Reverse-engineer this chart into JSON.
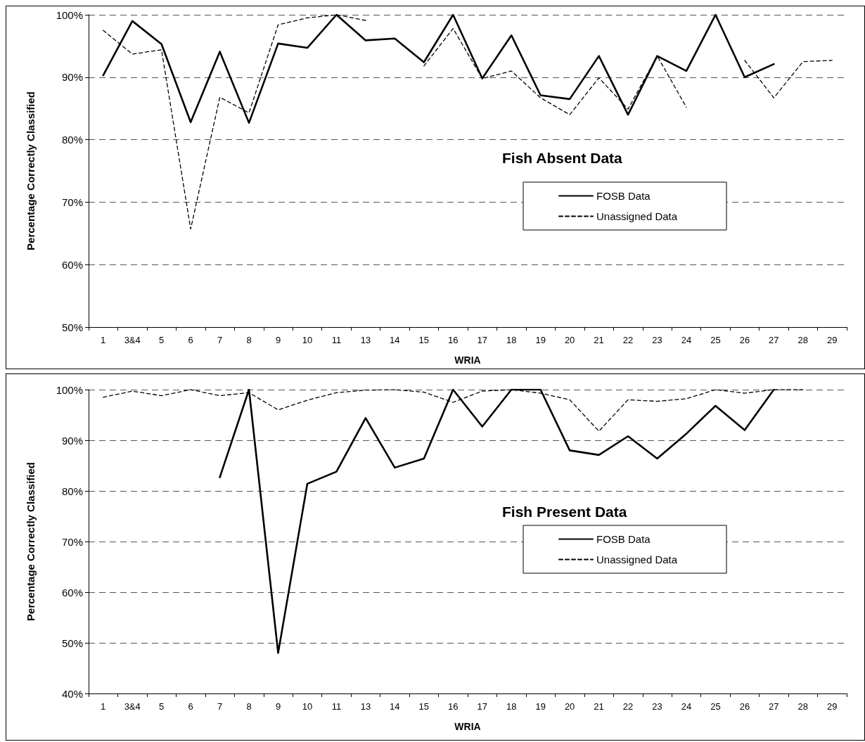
{
  "chart_data": [
    {
      "type": "line",
      "title": "Fish Absent Data",
      "xlabel": "WRIA",
      "ylabel": "Percentage Correctly Classified",
      "categories": [
        "1",
        "3&4",
        "5",
        "6",
        "7",
        "8",
        "9",
        "10",
        "11",
        "13",
        "14",
        "15",
        "16",
        "17",
        "18",
        "19",
        "20",
        "21",
        "22",
        "23",
        "24",
        "25",
        "26",
        "27",
        "28",
        "29"
      ],
      "series": [
        {
          "name": "FOSB Data",
          "color": "#000000",
          "line_style": "solid",
          "values": [
            90.3,
            99.0,
            95.3,
            82.8,
            94.1,
            82.7,
            95.4,
            94.7,
            100,
            95.9,
            96.2,
            92.4,
            100,
            89.8,
            96.7,
            87.1,
            86.5,
            93.4,
            84.0,
            93.4,
            91.0,
            100,
            90.0,
            92.1,
            null,
            null
          ]
        },
        {
          "name": "Unassigned Data",
          "color": "#000000",
          "line_style": "dashed",
          "values": [
            97.5,
            93.7,
            94.4,
            65.7,
            86.8,
            84.3,
            98.4,
            99.5,
            100,
            99.1,
            null,
            91.8,
            97.8,
            89.8,
            91.0,
            86.7,
            84.0,
            89.9,
            84.9,
            93.4,
            85.2,
            null,
            92.7,
            86.7,
            92.5,
            92.7
          ]
        }
      ],
      "ylim": [
        50,
        100
      ],
      "yticks": [
        {
          "value": 50,
          "label": "50%"
        },
        {
          "value": 60,
          "label": "60%"
        },
        {
          "value": 70,
          "label": "70%"
        },
        {
          "value": 80,
          "label": "80%"
        },
        {
          "value": 90,
          "label": "90%"
        },
        {
          "value": 100,
          "label": "100%"
        }
      ],
      "grid": "y",
      "legend": "right",
      "marker": "none"
    },
    {
      "type": "line",
      "title": "Fish Present Data",
      "xlabel": "WRIA",
      "ylabel": "Percentage Correctly Classified",
      "categories": [
        "1",
        "3&4",
        "5",
        "6",
        "7",
        "8",
        "9",
        "10",
        "11",
        "13",
        "14",
        "15",
        "16",
        "17",
        "18",
        "19",
        "20",
        "21",
        "22",
        "23",
        "24",
        "25",
        "26",
        "27",
        "28",
        "29"
      ],
      "series": [
        {
          "name": "FOSB Data",
          "color": "#000000",
          "line_style": "solid",
          "values": [
            null,
            null,
            null,
            null,
            82.7,
            100,
            48.0,
            81.4,
            83.8,
            94.4,
            84.6,
            86.4,
            100,
            92.7,
            100,
            100,
            88.0,
            87.1,
            90.8,
            86.4,
            91.3,
            96.8,
            92.0,
            100,
            null,
            null
          ]
        },
        {
          "name": "Unassigned Data",
          "color": "#000000",
          "line_style": "dashed",
          "values": [
            98.5,
            99.7,
            98.8,
            100,
            98.8,
            99.4,
            96.0,
            97.9,
            99.4,
            99.9,
            100,
            99.5,
            97.5,
            99.7,
            100,
            99.3,
            98.0,
            91.8,
            98.0,
            97.7,
            98.2,
            100,
            99.3,
            100,
            100,
            null
          ]
        }
      ],
      "ylim": [
        40,
        100
      ],
      "yticks": [
        {
          "value": 40,
          "label": "40%"
        },
        {
          "value": 50,
          "label": "50%"
        },
        {
          "value": 60,
          "label": "60%"
        },
        {
          "value": 70,
          "label": "70%"
        },
        {
          "value": 80,
          "label": "80%"
        },
        {
          "value": 90,
          "label": "90%"
        },
        {
          "value": 100,
          "label": "100%"
        }
      ],
      "grid": "y",
      "legend": "right",
      "marker": "none"
    }
  ]
}
